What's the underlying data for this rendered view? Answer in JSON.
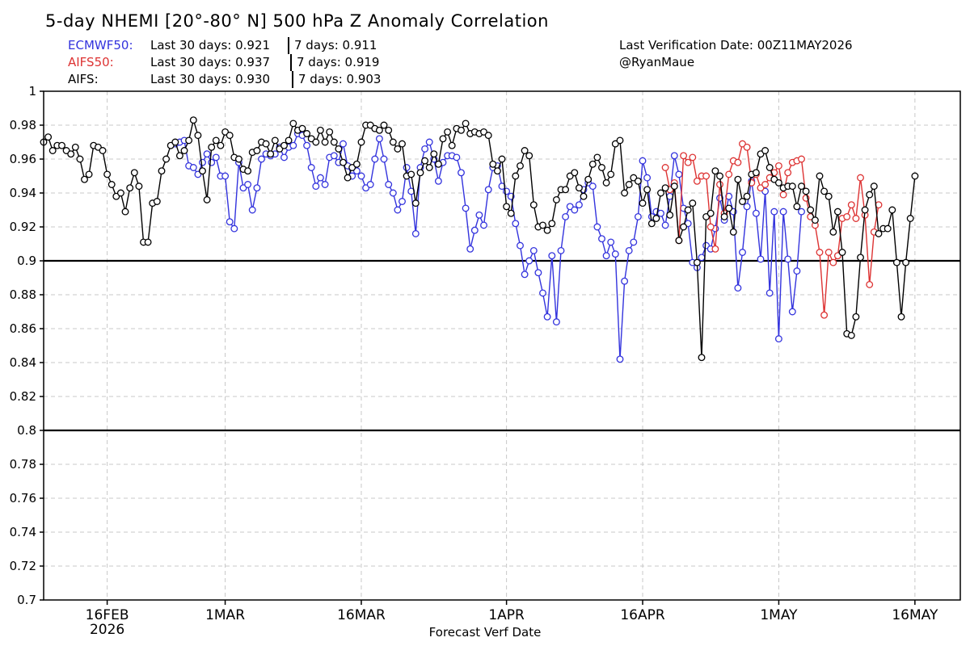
{
  "title": "5-day NHEMI [20°-80° N] 500 hPa Z Anomaly Correlation",
  "stats": [
    {
      "model": "ECMWF50:",
      "last30": "Last 30 days: 0.921",
      "last7": "7 days: 0.911",
      "color": "#3333dd"
    },
    {
      "model": "AIFS50:",
      "last30": "Last 30 days: 0.937",
      "last7": "7 days: 0.919",
      "color": "#dd3333"
    },
    {
      "model": "AIFS:",
      "last30": "Last 30 days: 0.930",
      "last7": "7 days: 0.903",
      "color": "#000000"
    }
  ],
  "verification": "Last Verification Date: 00Z11MAY2026",
  "credit": "@RyanMaue",
  "chart_data": {
    "type": "line",
    "xlabel": "Forecast Verf Date",
    "ylabel": "",
    "ylim": [
      0.7,
      1.0
    ],
    "x_range": [
      "2026-02-09",
      "2026-05-21"
    ],
    "x_step_days": 0.5,
    "yticks": [
      "0.7",
      "0.72",
      "0.74",
      "0.76",
      "0.78",
      "0.8",
      "0.82",
      "0.84",
      "0.86",
      "0.88",
      "0.9",
      "0.92",
      "0.94",
      "0.96",
      "0.98",
      "1"
    ],
    "xticks": [
      {
        "date": "2026-02-16",
        "label": "16FEB",
        "sublabel": "2026"
      },
      {
        "date": "2026-03-01",
        "label": "1MAR",
        "sublabel": ""
      },
      {
        "date": "2026-03-16",
        "label": "16MAR",
        "sublabel": ""
      },
      {
        "date": "2026-04-01",
        "label": "1APR",
        "sublabel": ""
      },
      {
        "date": "2026-04-16",
        "label": "16APR",
        "sublabel": ""
      },
      {
        "date": "2026-05-01",
        "label": "1MAY",
        "sublabel": ""
      },
      {
        "date": "2026-05-16",
        "label": "16MAY",
        "sublabel": ""
      }
    ],
    "reference_lines": [
      0.9,
      0.8
    ],
    "grid": true,
    "series": [
      {
        "name": "ECMWF50",
        "color": "#3333dd",
        "start": "2026-02-23T12",
        "values": [
          0.969,
          0.97,
          0.971,
          0.956,
          0.955,
          0.951,
          0.958,
          0.963,
          0.958,
          0.961,
          0.95,
          0.95,
          0.923,
          0.919,
          0.958,
          0.943,
          0.945,
          0.93,
          0.943,
          0.96,
          0.963,
          0.962,
          0.963,
          0.967,
          0.961,
          0.967,
          0.968,
          0.975,
          0.974,
          0.968,
          0.955,
          0.944,
          0.949,
          0.945,
          0.961,
          0.962,
          0.958,
          0.969,
          0.956,
          0.95,
          0.953,
          0.95,
          0.943,
          0.945,
          0.96,
          0.972,
          0.96,
          0.945,
          0.94,
          0.93,
          0.935,
          0.955,
          0.941,
          0.916,
          0.955,
          0.966,
          0.97,
          0.96,
          0.947,
          0.958,
          0.962,
          0.962,
          0.961,
          0.952,
          0.931,
          0.907,
          0.918,
          0.927,
          0.921,
          0.942,
          0.955,
          0.956,
          0.944,
          0.941,
          0.938,
          0.922,
          0.909,
          0.892,
          0.9,
          0.906,
          0.893,
          0.881,
          0.867,
          0.903,
          0.864,
          0.906,
          0.926,
          0.932,
          0.93,
          0.933,
          0.942,
          0.946,
          0.944,
          0.92,
          0.913,
          0.903,
          0.911,
          0.904,
          0.842,
          0.888,
          0.906,
          0.911,
          0.926,
          0.959,
          0.949,
          0.926,
          0.929,
          0.928,
          0.921,
          0.938,
          0.962,
          0.951,
          0.931,
          0.922,
          0.899,
          0.896,
          0.902,
          0.909,
          0.907,
          0.919,
          0.937,
          0.924,
          0.938,
          0.929,
          0.884,
          0.905,
          0.932,
          0.947,
          0.928,
          0.901,
          0.941,
          0.881,
          0.929,
          0.854,
          0.929,
          0.901,
          0.87,
          0.894,
          0.929
        ]
      },
      {
        "name": "AIFS50",
        "color": "#dd3333",
        "start": "2026-04-18T12",
        "values": [
          0.955,
          0.942,
          0.946,
          0.912,
          0.962,
          0.958,
          0.961,
          0.947,
          0.95,
          0.95,
          0.92,
          0.907,
          0.945,
          0.928,
          0.951,
          0.959,
          0.958,
          0.969,
          0.967,
          0.946,
          0.951,
          0.943,
          0.945,
          0.949,
          0.952,
          0.956,
          0.939,
          0.952,
          0.958,
          0.959,
          0.96,
          0.937,
          0.926,
          0.921,
          0.905,
          0.868,
          0.905,
          0.899,
          0.903,
          0.925,
          0.926,
          0.933,
          0.925,
          0.949,
          0.927,
          0.886,
          0.917,
          0.933
        ]
      },
      {
        "name": "AIFS",
        "color": "#000000",
        "start": "2026-02-09T00",
        "values": [
          0.97,
          0.973,
          0.965,
          0.968,
          0.968,
          0.965,
          0.963,
          0.967,
          0.96,
          0.948,
          0.951,
          0.968,
          0.967,
          0.965,
          0.951,
          0.945,
          0.938,
          0.94,
          0.929,
          0.943,
          0.952,
          0.944,
          0.911,
          0.911,
          0.934,
          0.935,
          0.953,
          0.96,
          0.968,
          0.97,
          0.962,
          0.965,
          0.971,
          0.983,
          0.974,
          0.953,
          0.936,
          0.967,
          0.971,
          0.968,
          0.976,
          0.974,
          0.961,
          0.96,
          0.954,
          0.953,
          0.964,
          0.965,
          0.97,
          0.969,
          0.963,
          0.971,
          0.966,
          0.968,
          0.971,
          0.981,
          0.977,
          0.978,
          0.975,
          0.972,
          0.97,
          0.977,
          0.97,
          0.976,
          0.97,
          0.966,
          0.958,
          0.949,
          0.955,
          0.957,
          0.97,
          0.98,
          0.98,
          0.978,
          0.977,
          0.98,
          0.977,
          0.97,
          0.966,
          0.969,
          0.95,
          0.951,
          0.934,
          0.952,
          0.959,
          0.955,
          0.963,
          0.957,
          0.972,
          0.976,
          0.968,
          0.978,
          0.977,
          0.981,
          0.975,
          0.976,
          0.975,
          0.976,
          0.974,
          0.957,
          0.953,
          0.96,
          0.932,
          0.928,
          0.95,
          0.956,
          0.965,
          0.962,
          0.933,
          0.92,
          0.921,
          0.918,
          0.922,
          0.936,
          0.942,
          0.942,
          0.95,
          0.952,
          0.943,
          0.938,
          0.948,
          0.957,
          0.961,
          0.955,
          0.946,
          0.951,
          0.969,
          0.971,
          0.94,
          0.945,
          0.949,
          0.947,
          0.934,
          0.942,
          0.922,
          0.925,
          0.94,
          0.943,
          0.927,
          0.944,
          0.912,
          0.92,
          0.93,
          0.934,
          0.899,
          0.843,
          0.926,
          0.928,
          0.953,
          0.95,
          0.926,
          0.931,
          0.917,
          0.948,
          0.935,
          0.938,
          0.951,
          0.952,
          0.963,
          0.965,
          0.955,
          0.948,
          0.946,
          0.943,
          0.944,
          0.944,
          0.932,
          0.944,
          0.941,
          0.93,
          0.924,
          0.95,
          0.941,
          0.938,
          0.917,
          0.929,
          0.905,
          0.857,
          0.856,
          0.867,
          0.902,
          0.93,
          0.939,
          0.944,
          0.916,
          0.919,
          0.919,
          0.93,
          0.899,
          0.867,
          0.899,
          0.925,
          0.95
        ]
      }
    ]
  }
}
